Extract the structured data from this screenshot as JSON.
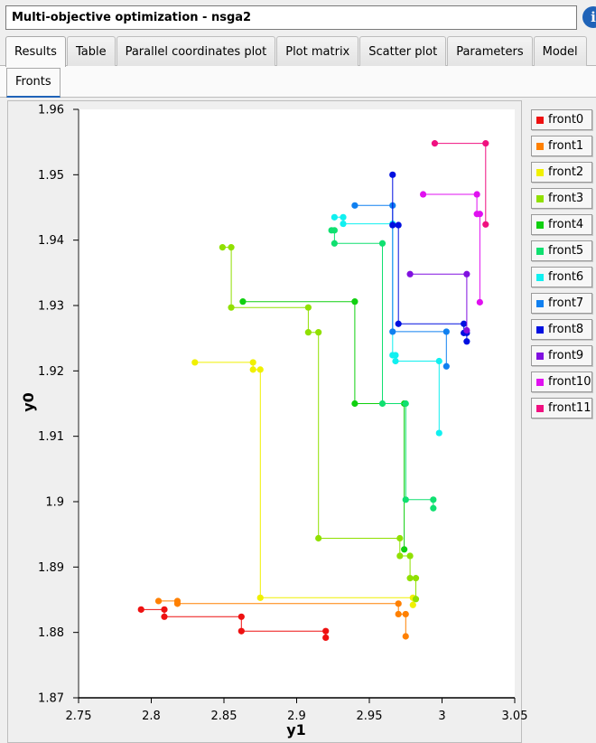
{
  "window": {
    "title": "Multi-objective optimization - nsga2",
    "info_icon": "info-icon",
    "info_label": "i"
  },
  "tabs": [
    "Results",
    "Table",
    "Parallel coordinates plot",
    "Plot matrix",
    "Scatter plot",
    "Parameters",
    "Model"
  ],
  "active_tab": "Results",
  "subtabs": [
    "Fronts"
  ],
  "chart_data": {
    "type": "line",
    "style": "step",
    "xlabel": "y1",
    "ylabel": "y0",
    "xlim": [
      2.75,
      3.05
    ],
    "ylim": [
      1.87,
      1.96
    ],
    "xticks": [
      2.75,
      2.8,
      2.85,
      2.9,
      2.95,
      3.0,
      3.05
    ],
    "xtick_labels": [
      "2.75",
      "2.8",
      "2.85",
      "2.9",
      "2.95",
      "3",
      "3.05"
    ],
    "yticks": [
      1.87,
      1.88,
      1.89,
      1.9,
      1.91,
      1.92,
      1.93,
      1.94,
      1.95,
      1.96
    ],
    "ytick_labels": [
      "1.87",
      "1.88",
      "1.89",
      "1.9",
      "1.91",
      "1.92",
      "1.93",
      "1.94",
      "1.95",
      "1.96"
    ],
    "legend_position": "right",
    "series": [
      {
        "name": "front0",
        "color": "#ee1111",
        "points": [
          [
            2.793,
            1.8835
          ],
          [
            2.809,
            1.8835
          ],
          [
            2.809,
            1.8824
          ],
          [
            2.862,
            1.8824
          ],
          [
            2.862,
            1.8802
          ],
          [
            2.92,
            1.8802
          ],
          [
            2.92,
            1.8792
          ]
        ]
      },
      {
        "name": "front1",
        "color": "#ff8000",
        "points": [
          [
            2.805,
            1.8848
          ],
          [
            2.818,
            1.8848
          ],
          [
            2.818,
            1.8844
          ],
          [
            2.97,
            1.8844
          ],
          [
            2.97,
            1.8828
          ],
          [
            2.975,
            1.8828
          ],
          [
            2.975,
            1.8794
          ]
        ]
      },
      {
        "name": "front2",
        "color": "#f0f000",
        "points": [
          [
            2.83,
            1.9213
          ],
          [
            2.87,
            1.9213
          ],
          [
            2.87,
            1.9202
          ],
          [
            2.875,
            1.9202
          ],
          [
            2.875,
            1.8853
          ],
          [
            2.98,
            1.8853
          ],
          [
            2.98,
            1.8842
          ]
        ]
      },
      {
        "name": "front3",
        "color": "#90e000",
        "points": [
          [
            2.849,
            1.9389
          ],
          [
            2.855,
            1.9389
          ],
          [
            2.855,
            1.9297
          ],
          [
            2.908,
            1.9297
          ],
          [
            2.908,
            1.9259
          ],
          [
            2.915,
            1.9259
          ],
          [
            2.915,
            1.8944
          ],
          [
            2.971,
            1.8944
          ],
          [
            2.971,
            1.8917
          ],
          [
            2.978,
            1.8917
          ],
          [
            2.978,
            1.8883
          ],
          [
            2.982,
            1.8883
          ],
          [
            2.982,
            1.8851
          ]
        ]
      },
      {
        "name": "front4",
        "color": "#10d010",
        "points": [
          [
            2.863,
            1.9306
          ],
          [
            2.94,
            1.9306
          ],
          [
            2.94,
            1.915
          ],
          [
            2.974,
            1.915
          ],
          [
            2.974,
            1.8927
          ]
        ]
      },
      {
        "name": "front5",
        "color": "#10e070",
        "points": [
          [
            2.924,
            1.9415
          ],
          [
            2.926,
            1.9415
          ],
          [
            2.926,
            1.9395
          ],
          [
            2.959,
            1.9395
          ],
          [
            2.959,
            1.915
          ],
          [
            2.975,
            1.915
          ],
          [
            2.975,
            1.9003
          ],
          [
            2.994,
            1.9003
          ],
          [
            2.994,
            1.899
          ]
        ]
      },
      {
        "name": "front6",
        "color": "#10f0f0",
        "points": [
          [
            2.926,
            1.9435
          ],
          [
            2.932,
            1.9435
          ],
          [
            2.932,
            1.9425
          ],
          [
            2.966,
            1.9425
          ],
          [
            2.966,
            1.9224
          ],
          [
            2.968,
            1.9224
          ],
          [
            2.968,
            1.9215
          ],
          [
            2.998,
            1.9215
          ],
          [
            2.998,
            1.9105
          ]
        ]
      },
      {
        "name": "front7",
        "color": "#1080f0",
        "points": [
          [
            2.94,
            1.9453
          ],
          [
            2.966,
            1.9453
          ],
          [
            2.966,
            1.926
          ],
          [
            3.003,
            1.926
          ],
          [
            3.003,
            1.9207
          ]
        ]
      },
      {
        "name": "front8",
        "color": "#0010e0",
        "points": [
          [
            2.966,
            1.95
          ],
          [
            2.966,
            1.9423
          ],
          [
            2.97,
            1.9423
          ],
          [
            2.97,
            1.9272
          ],
          [
            3.015,
            1.9272
          ],
          [
            3.015,
            1.9258
          ],
          [
            3.017,
            1.9258
          ],
          [
            3.017,
            1.9245
          ]
        ]
      },
      {
        "name": "front9",
        "color": "#8010e0",
        "points": [
          [
            2.978,
            1.9348
          ],
          [
            3.017,
            1.9348
          ],
          [
            3.017,
            1.9262
          ]
        ]
      },
      {
        "name": "front10",
        "color": "#e010f0",
        "points": [
          [
            2.987,
            1.947
          ],
          [
            3.024,
            1.947
          ],
          [
            3.024,
            1.944
          ],
          [
            3.026,
            1.944
          ],
          [
            3.026,
            1.9305
          ]
        ]
      },
      {
        "name": "front11",
        "color": "#f01080",
        "points": [
          [
            2.995,
            1.9548
          ],
          [
            3.03,
            1.9548
          ],
          [
            3.03,
            1.9424
          ]
        ]
      }
    ]
  }
}
